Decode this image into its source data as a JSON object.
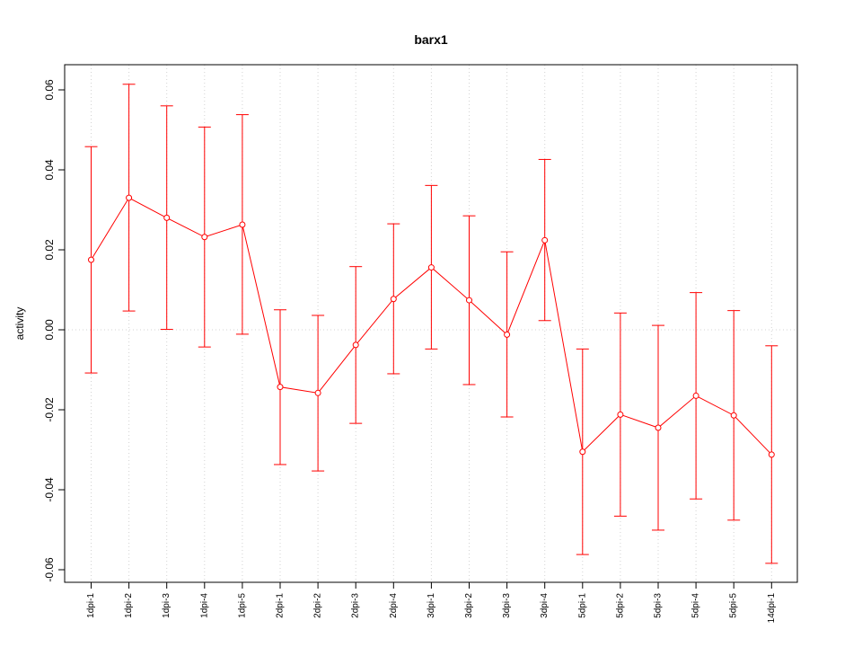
{
  "chart_data": {
    "type": "line",
    "title": "barx1",
    "xlabel": "",
    "ylabel": "activity",
    "ylim": [
      -0.063,
      0.066
    ],
    "yticks": [
      -0.06,
      -0.04,
      -0.02,
      0.0,
      0.02,
      0.04,
      0.06
    ],
    "ytick_labels": [
      "-0.06",
      "-0.04",
      "-0.02",
      "0.00",
      "0.02",
      "0.04",
      "0.06"
    ],
    "grid": true,
    "series_color": "#ff0000",
    "grid_color": "#d3d3d3",
    "categories": [
      "1dpi-1",
      "1dpi-2",
      "1dpi-3",
      "1dpi-4",
      "1dpi-5",
      "2dpi-1",
      "2dpi-2",
      "2dpi-3",
      "2dpi-4",
      "3dpi-1",
      "3dpi-2",
      "3dpi-3",
      "3dpi-4",
      "5dpi-1",
      "5dpi-2",
      "5dpi-3",
      "5dpi-4",
      "5dpi-5",
      "14dpi-1"
    ],
    "values": [
      0.0175,
      0.033,
      0.028,
      0.0232,
      0.0263,
      -0.0143,
      -0.0158,
      -0.0038,
      0.0077,
      0.0156,
      0.0074,
      -0.0012,
      0.0224,
      -0.0305,
      -0.0212,
      -0.0245,
      -0.0165,
      -0.0214,
      -0.0312
    ],
    "upper": [
      0.0458,
      0.0614,
      0.056,
      0.0507,
      0.0538,
      0.005,
      0.0036,
      0.0158,
      0.0265,
      0.0361,
      0.0285,
      0.0195,
      0.0426,
      -0.0048,
      0.0042,
      0.0011,
      0.0093,
      0.0048,
      -0.004
    ],
    "lower": [
      -0.0108,
      0.0047,
      0.0001,
      -0.0043,
      -0.0011,
      -0.0337,
      -0.0353,
      -0.0234,
      -0.011,
      -0.0048,
      -0.0137,
      -0.0218,
      0.0023,
      -0.0562,
      -0.0466,
      -0.0501,
      -0.0423,
      -0.0476,
      -0.0584
    ]
  }
}
